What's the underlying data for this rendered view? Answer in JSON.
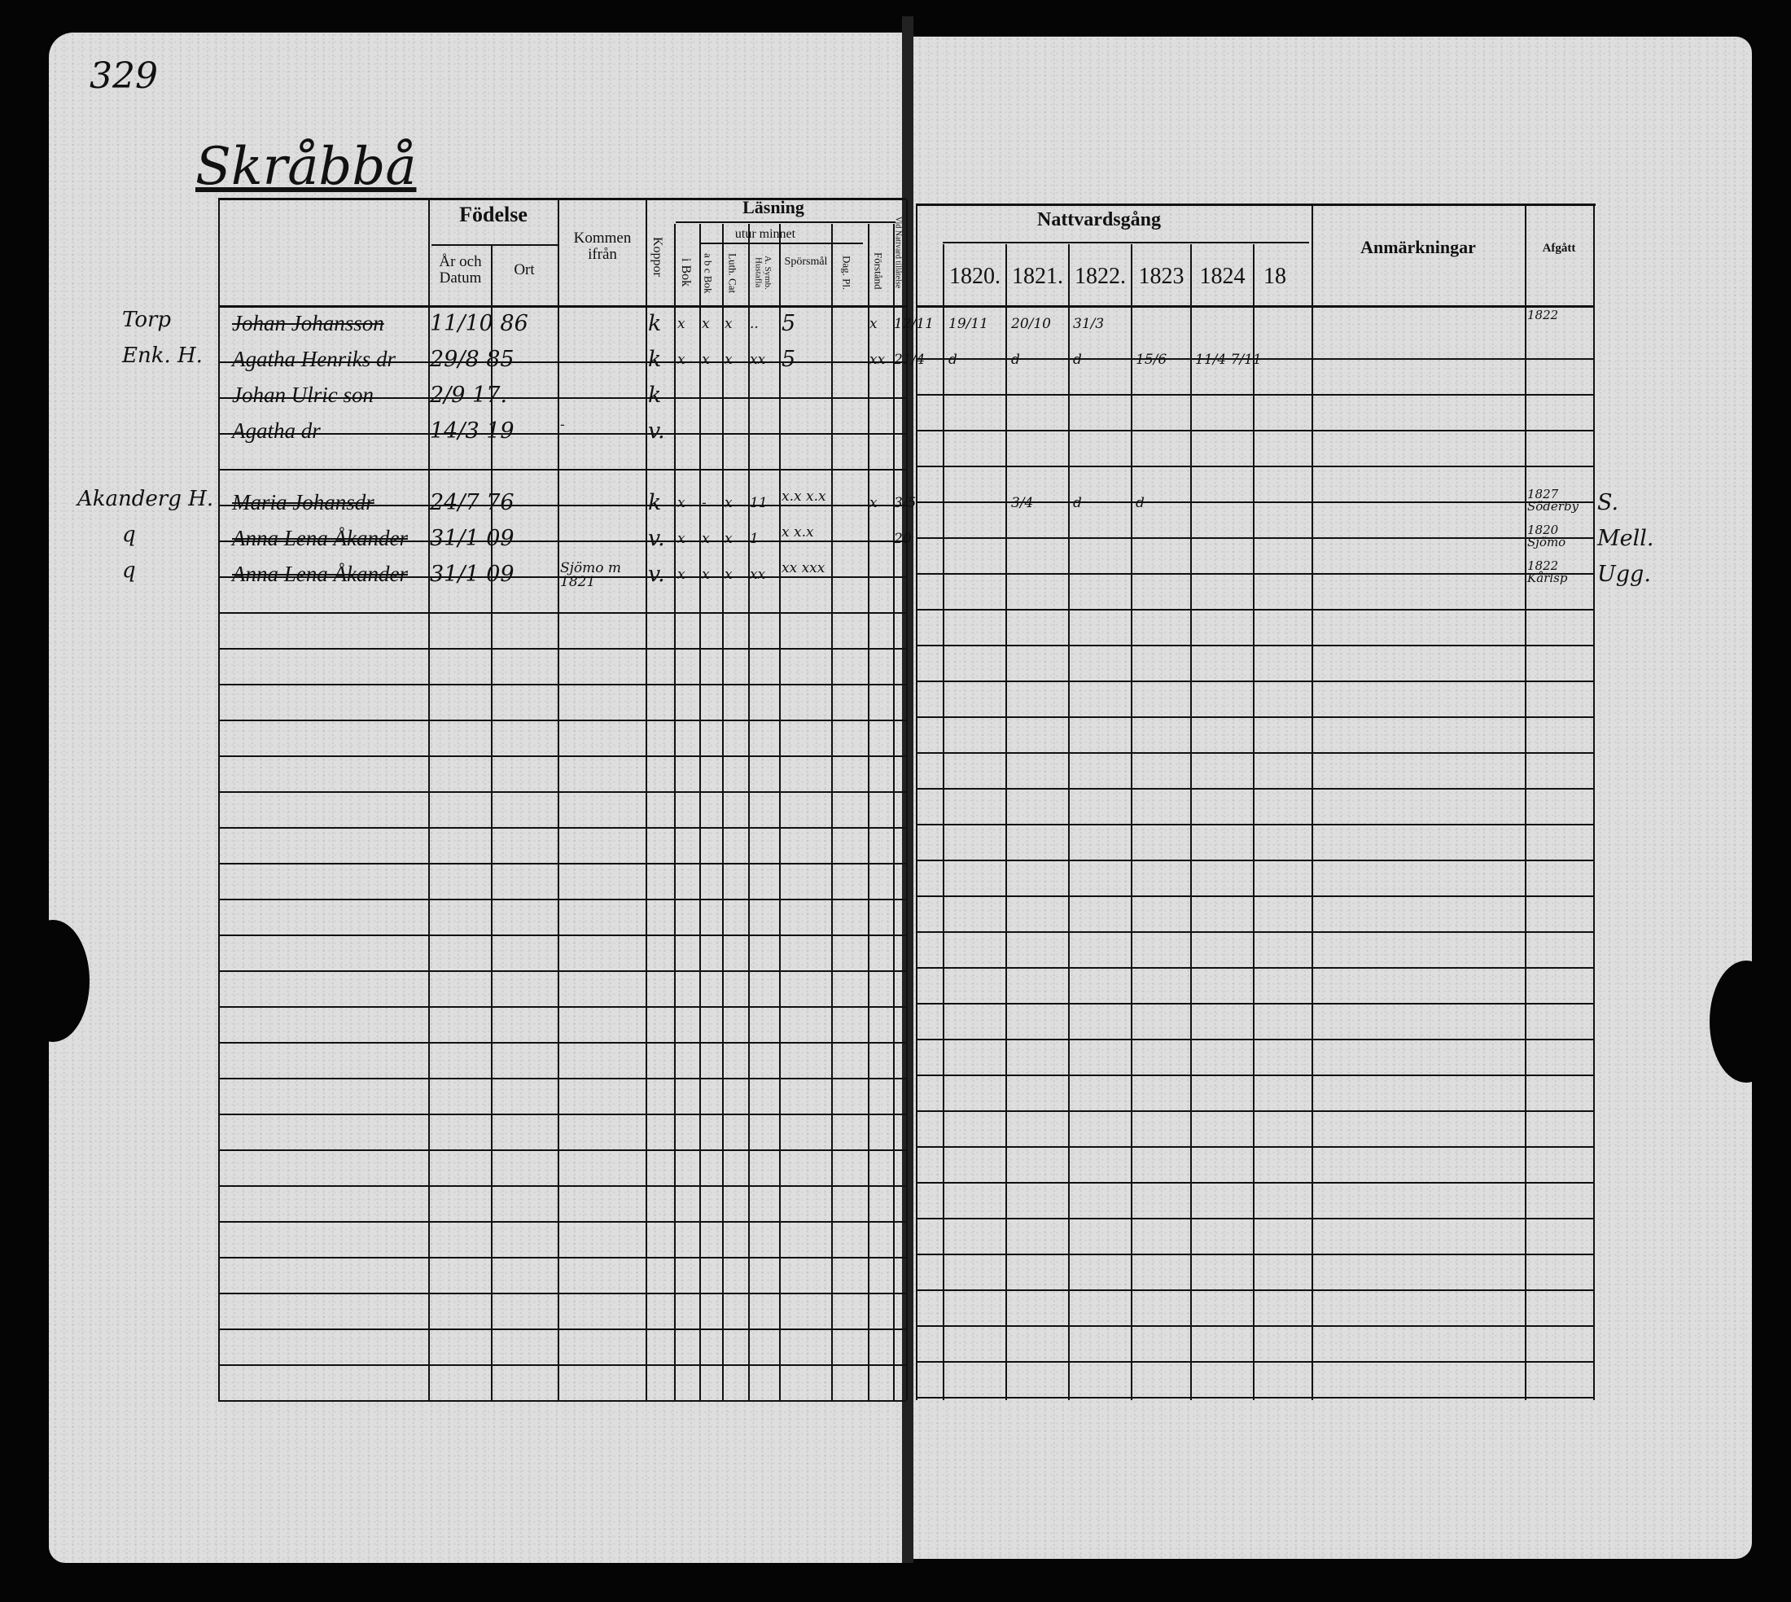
{
  "document": {
    "page_number": "329",
    "place_title": "Skråbbå",
    "left_headers": {
      "fodelse": "Födelse",
      "ar_och_datum": "År och Datum",
      "ort": "Ort",
      "kommen_ifran": "Kommen ifrån",
      "koppor": "Koppor",
      "lasning": "Läsning",
      "i_bok": "i Bok",
      "utur_minnet": "utur minnet",
      "abc_bok": "a b c Bok",
      "luth_cat": "Luth. Cat",
      "a_symb": "A. Symb. Hustafla",
      "sporsmal": "Spörsmål",
      "dag_pl": "Dag. Pl.",
      "forstand": "Förstånd",
      "vid_nattvard": "Vid Nattvard tillåtelse"
    },
    "right_headers": {
      "nattvardsgang": "Nattvardsgång",
      "years": [
        "1820.",
        "1821.",
        "1822.",
        "1823",
        "1824",
        "18"
      ],
      "anmarkningar": "Anmärkningar",
      "afgatt": "Afgått"
    },
    "margin_notes": [
      {
        "text": "Torp",
        "row": 0
      },
      {
        "text": "Enk. H.",
        "row": 1
      },
      {
        "text": "Akanderg  H.",
        "row": 5
      },
      {
        "text": "q",
        "row": 6
      },
      {
        "text": "q",
        "row": 7
      }
    ],
    "rows": [
      {
        "name": "Johan Johansson",
        "struck": true,
        "year": "11/10 86",
        "koppor": "k",
        "ibok": "x",
        "abc": "x",
        "luth": "x",
        "asymb": "..",
        "spors": "5",
        "dag": "",
        "forst": "x",
        "vid": "12/11",
        "y1820": "19/11",
        "y1821": "20/10",
        "y1822": "31/3",
        "afgatt": "1822"
      },
      {
        "name": "Agatha Henriks dr",
        "year": "29/8 85",
        "koppor": "k",
        "ibok": "x",
        "abc": "x",
        "luth": "x",
        "asymb": "xx",
        "spors": "5",
        "forst": "xx",
        "vid": "21/4",
        "y1820": "d",
        "y1821": "d",
        "y1822": "d",
        "y1823": "15/6",
        "y1824": "11/4  7/11"
      },
      {
        "name": "Johan Ulric son",
        "year": "2/9 17.",
        "koppor": "k"
      },
      {
        "name": "Agatha  dr",
        "year": "14/3 19",
        "kommen": "-",
        "koppor": "v."
      },
      {},
      {
        "name": "Maria Johansdr",
        "struck": true,
        "year": "24/7 76",
        "koppor": "k",
        "ibok": "x",
        "abc": "-",
        "luth": "x",
        "asymb": "11",
        "spors": "x.x  x.x",
        "forst": "x",
        "vid": "3/5",
        "y1821": "3/4",
        "y1822": "d",
        "y1823": "d",
        "afgatt": "1827 Söderby",
        "afgatt_note": "S."
      },
      {
        "name": "Anna Lena Åkander",
        "struck": true,
        "year": "31/1 09",
        "koppor": "v.",
        "ibok": "x",
        "abc": "x",
        "luth": "x",
        "asymb": "1",
        "spors": "x  x.x",
        "vid": "20",
        "afgatt": "1820 Sjömo",
        "afgatt_note": "Mell."
      },
      {
        "name": "Anna Lena Åkander",
        "struck": true,
        "year": "31/1 09",
        "kommen": "Sjömo m 1821",
        "koppor": "v.",
        "ibok": "x",
        "abc": "x",
        "luth": "x",
        "asymb": "xx",
        "spors": "xx  xxx",
        "afgatt": "1822 Kårlsp",
        "afgatt_note": "Ugg."
      }
    ]
  }
}
